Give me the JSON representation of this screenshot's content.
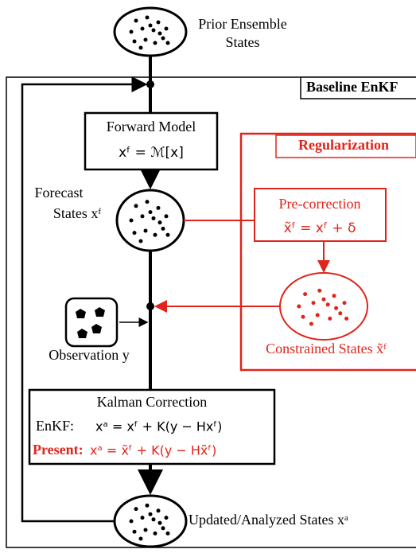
{
  "baseline_label": "Baseline EnKF",
  "regularization_label": "Regularization",
  "prior": [
    "Prior Ensemble",
    "States"
  ],
  "forward_model": {
    "title": "Forward Model",
    "equation": "xᶠ = ℳ[x]"
  },
  "forecast": [
    "Forecast",
    "States xᶠ"
  ],
  "pre_correction": {
    "title": "Pre-correction",
    "equation": "x̃ᶠ = xᶠ + δ"
  },
  "constrained": "Constrained States x̃ᶠ",
  "observation": "Observation y",
  "kalman": {
    "title": "Kalman Correction",
    "enkf_label": "EnKF:",
    "enkf_equation": "xᵃ = xᶠ + K(y − Hxᶠ)",
    "present_label": "Present:",
    "present_equation": "xᵃ = x̃ᶠ + K(y − Hx̃ᶠ)"
  },
  "updated": "Updated/Analyzed States xᵃ"
}
